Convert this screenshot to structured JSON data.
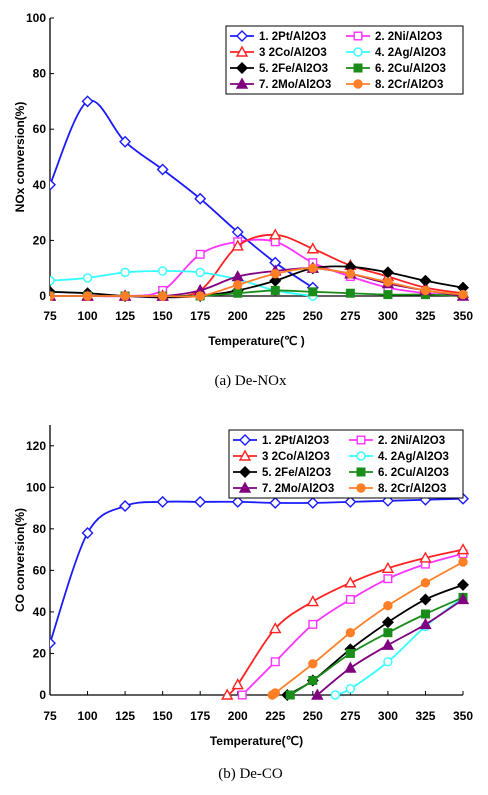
{
  "chart_data": [
    {
      "type": "line",
      "caption": "(a)  De-NOx",
      "xlabel": "Temperature(℃ )",
      "ylabel": "NOx conversion(%)",
      "xlim": [
        75,
        350
      ],
      "ylim": [
        0,
        100
      ],
      "xticks": [
        "75",
        "100",
        "125",
        "150",
        "175",
        "200",
        "225",
        "250",
        "275",
        "300",
        "325",
        "350"
      ],
      "yticks": [
        "0",
        "20",
        "40",
        "60",
        "80",
        "100"
      ],
      "legend_position": "top-right",
      "grid": false,
      "series": [
        {
          "name": "1. 2Pt/Al2O3",
          "color": "#1a1aff",
          "marker": "diamond-open",
          "x": [
            75,
            100,
            125,
            150,
            175,
            200,
            225,
            250
          ],
          "y": [
            40,
            70,
            55.5,
            45.5,
            35,
            23,
            12,
            3
          ]
        },
        {
          "name": "2. 2Ni/Al2O3",
          "color": "#ff33ff",
          "marker": "square-open",
          "x": [
            75,
            100,
            125,
            150,
            175,
            200,
            225,
            250,
            275,
            300,
            325,
            350
          ],
          "y": [
            0,
            0,
            0,
            2,
            15,
            19.5,
            19.5,
            12,
            7,
            3,
            1,
            0
          ]
        },
        {
          "name": "3 2Co/Al2O3",
          "color": "#ff2222",
          "marker": "triangle-open",
          "x": [
            75,
            100,
            125,
            150,
            175,
            200,
            225,
            250,
            275,
            300,
            325,
            350
          ],
          "y": [
            0,
            0,
            0,
            0,
            2,
            18,
            22,
            17,
            11,
            7,
            3,
            1
          ]
        },
        {
          "name": "4. 2Ag/Al2O3",
          "color": "#33ffff",
          "marker": "circle-open",
          "x": [
            75,
            100,
            125,
            150,
            175,
            200,
            225,
            250
          ],
          "y": [
            5.5,
            6.5,
            8.5,
            9,
            8.5,
            6,
            2,
            0
          ]
        },
        {
          "name": "5. 2Fe/Al2O3",
          "color": "#000000",
          "marker": "diamond-filled",
          "x": [
            75,
            100,
            125,
            150,
            175,
            200,
            225,
            250,
            275,
            300,
            325,
            350
          ],
          "y": [
            1.5,
            1,
            0,
            -0.5,
            0,
            2,
            5.5,
            10,
            10.5,
            8.5,
            5.5,
            3
          ]
        },
        {
          "name": "6. 2Cu/Al2O3",
          "color": "#1a8c1a",
          "marker": "square-filled",
          "x": [
            75,
            100,
            125,
            150,
            175,
            200,
            225,
            250,
            275,
            300,
            325,
            350
          ],
          "y": [
            0,
            0,
            0,
            0,
            0,
            1,
            2,
            1.5,
            1,
            0.5,
            0.5,
            0
          ]
        },
        {
          "name": "7. 2Mo/Al2O3",
          "color": "#800080",
          "marker": "triangle-filled",
          "x": [
            75,
            100,
            125,
            150,
            175,
            200,
            225,
            250,
            275,
            300,
            325,
            350
          ],
          "y": [
            0,
            0,
            0,
            0,
            2,
            7,
            9,
            10,
            8,
            4.5,
            2,
            0
          ]
        },
        {
          "name": "8. 2Cr/Al2O3",
          "color": "#ff7f27",
          "marker": "circle-filled",
          "x": [
            75,
            100,
            125,
            150,
            175,
            200,
            225,
            250,
            275,
            300,
            325,
            350
          ],
          "y": [
            0,
            0,
            0,
            0,
            0,
            4,
            8,
            10,
            8,
            5,
            2,
            0.5
          ]
        }
      ]
    },
    {
      "type": "line",
      "caption": "(b)  De-CO",
      "xlabel": "Temperature(℃)",
      "ylabel": "CO conversion(%)",
      "xlim": [
        75,
        350
      ],
      "ylim": [
        0,
        130
      ],
      "xticks": [
        "75",
        "100",
        "125",
        "150",
        "175",
        "200",
        "225",
        "250",
        "275",
        "300",
        "325",
        "350"
      ],
      "yticks": [
        "0",
        "20",
        "40",
        "60",
        "80",
        "100",
        "120"
      ],
      "legend_position": "top-right",
      "grid": false,
      "series": [
        {
          "name": "1. 2Pt/Al2O3",
          "color": "#1a1aff",
          "marker": "diamond-open",
          "x": [
            75,
            100,
            125,
            150,
            175,
            200,
            225,
            250,
            275,
            300,
            325,
            350
          ],
          "y": [
            25,
            78,
            91,
            93,
            93,
            93,
            92.5,
            92.5,
            93,
            93.5,
            94,
            94.5
          ]
        },
        {
          "name": "2. 2Ni/Al2O3",
          "color": "#ff33ff",
          "marker": "square-open",
          "x": [
            203,
            225,
            250,
            275,
            300,
            325,
            350
          ],
          "y": [
            0,
            16,
            34,
            46,
            56,
            63,
            68
          ]
        },
        {
          "name": "3 2Co/Al2O3",
          "color": "#ff2222",
          "marker": "triangle-open",
          "x": [
            193,
            200,
            225,
            250,
            275,
            300,
            325,
            350
          ],
          "y": [
            0,
            5,
            32,
            45,
            54,
            61,
            66,
            70
          ]
        },
        {
          "name": "4. 2Ag/Al2O3",
          "color": "#33ffff",
          "marker": "circle-open",
          "x": [
            265,
            275,
            300,
            325,
            350
          ],
          "y": [
            0,
            3,
            16,
            33,
            47
          ]
        },
        {
          "name": "5. 2Fe/Al2O3",
          "color": "#000000",
          "marker": "diamond-filled",
          "x": [
            233,
            250,
            275,
            300,
            325,
            350
          ],
          "y": [
            0,
            7,
            22,
            35,
            46,
            53
          ]
        },
        {
          "name": "6. 2Cu/Al2O3",
          "color": "#1a8c1a",
          "marker": "square-filled",
          "x": [
            235,
            250,
            275,
            300,
            325,
            350
          ],
          "y": [
            0,
            7,
            20,
            30,
            39,
            47
          ]
        },
        {
          "name": "7. 2Mo/Al2O3",
          "color": "#800080",
          "marker": "triangle-filled",
          "x": [
            253,
            275,
            300,
            325,
            350
          ],
          "y": [
            0,
            13,
            24,
            34,
            46
          ]
        },
        {
          "name": "8. 2Cr/Al2O3",
          "color": "#ff7f27",
          "marker": "circle-filled",
          "x": [
            223,
            225,
            250,
            275,
            300,
            325,
            350
          ],
          "y": [
            0,
            1,
            15,
            30,
            43,
            54,
            64
          ]
        }
      ]
    }
  ]
}
